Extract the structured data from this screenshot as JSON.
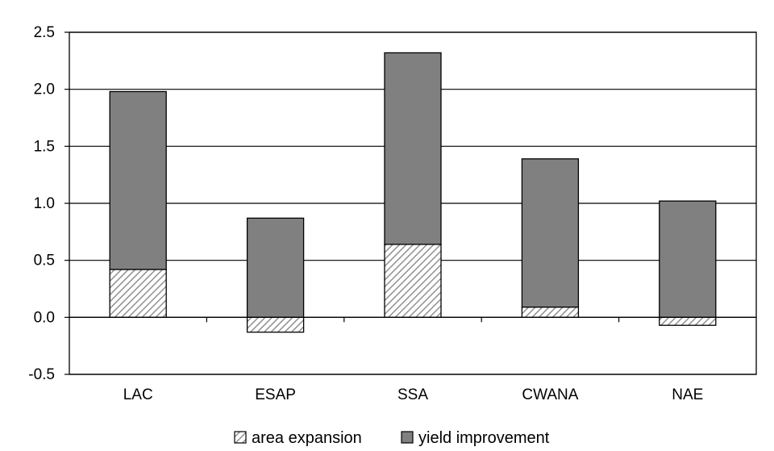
{
  "chart_data": {
    "type": "bar",
    "stacked": true,
    "categories": [
      "LAC",
      "ESAP",
      "SSA",
      "CWANA",
      "NAE"
    ],
    "series": [
      {
        "name": "area expansion",
        "values": [
          0.42,
          -0.13,
          0.64,
          0.09,
          -0.07
        ],
        "pattern": "diagonal-hatch",
        "color": "#a0a0a0"
      },
      {
        "name": "yield improvement",
        "values": [
          1.56,
          0.87,
          1.68,
          1.3,
          1.02
        ],
        "pattern": "solid",
        "color": "#808080"
      }
    ],
    "ylim": [
      -0.5,
      2.5
    ],
    "yticks": [
      "-0.5",
      "0.0",
      "0.5",
      "1.0",
      "1.5",
      "2.0",
      "2.5"
    ],
    "ytick_values": [
      -0.5,
      0.0,
      0.5,
      1.0,
      1.5,
      2.0,
      2.5
    ],
    "grid": true,
    "legend_position": "bottom",
    "title": "",
    "xlabel": "",
    "ylabel": ""
  }
}
